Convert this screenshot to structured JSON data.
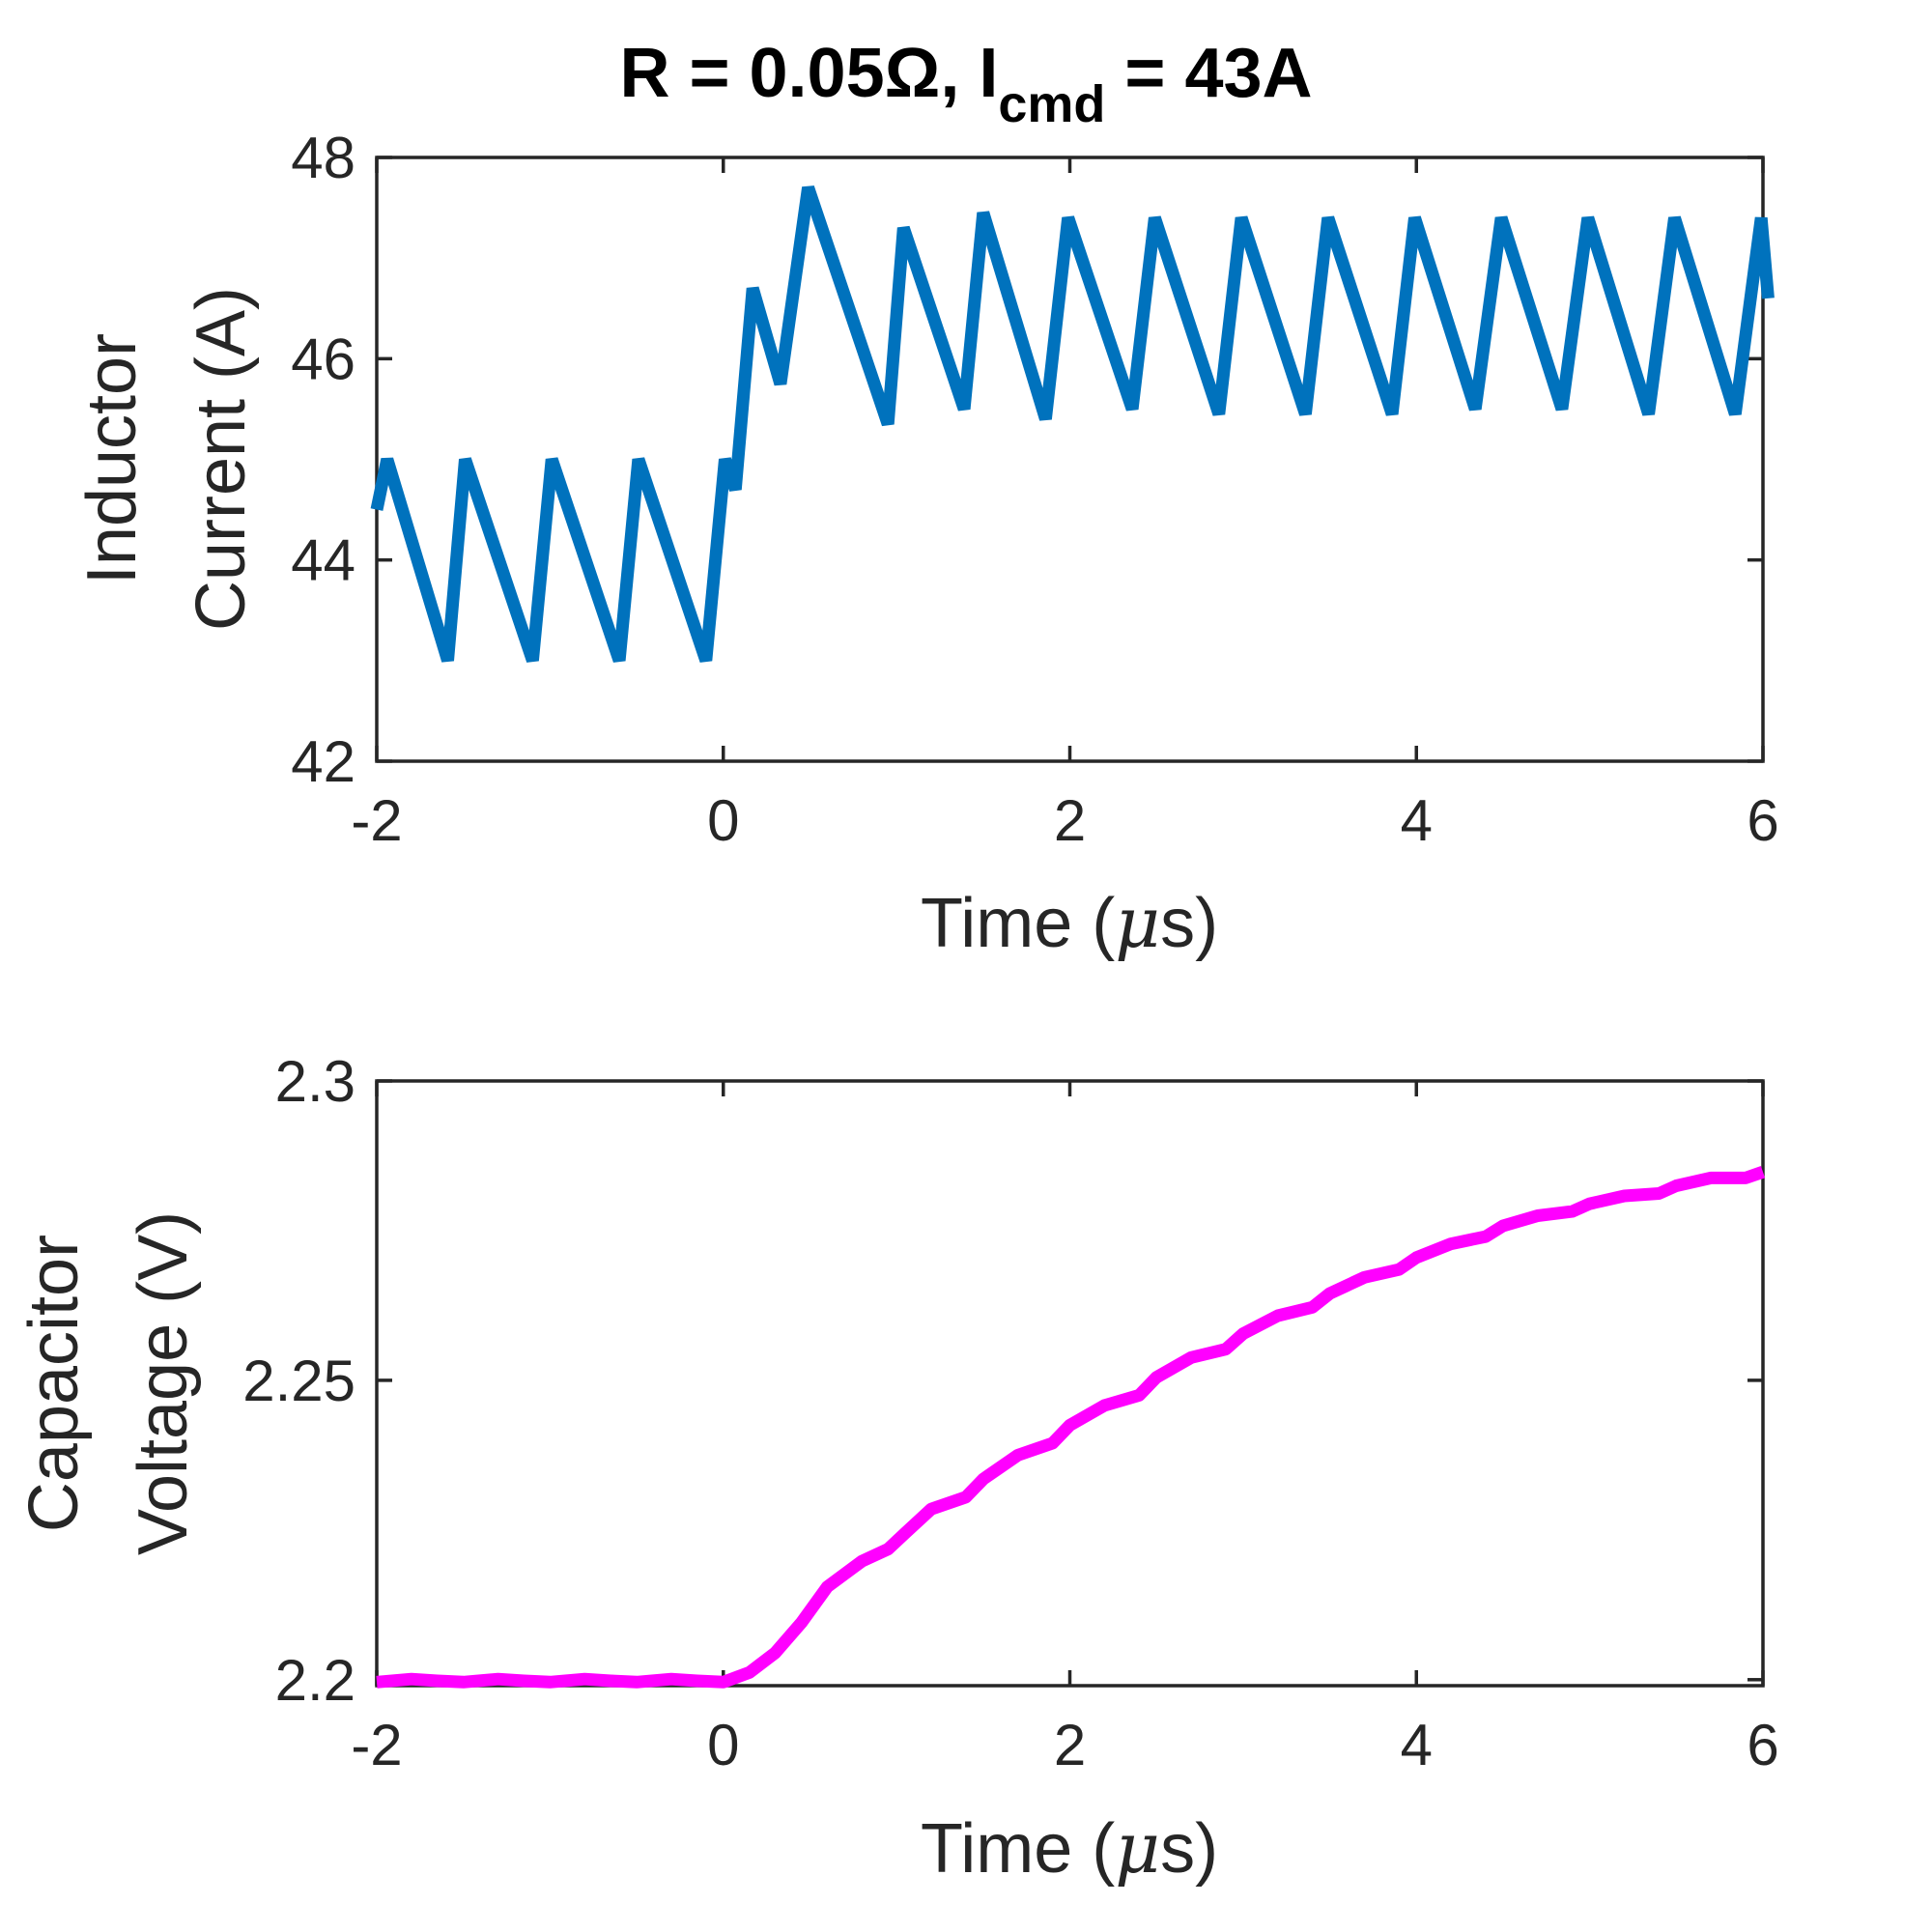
{
  "chart_data": [
    {
      "type": "line",
      "title": {
        "main": "R = 0.05Ω, I",
        "sub": "cmd",
        "tail": " = 43A"
      },
      "xlabel": {
        "pre": "Time (",
        "mu": "μ",
        "post": "s)"
      },
      "ylabel": [
        "Inductor",
        "Current (A)"
      ],
      "xlim": [
        -2,
        6
      ],
      "ylim": [
        42,
        48
      ],
      "xticks": [
        -2,
        0,
        2,
        4,
        6
      ],
      "xtick_labels": [
        "-2",
        "0",
        "2",
        "4",
        "6"
      ],
      "yticks": [
        42,
        44,
        46,
        48
      ],
      "ytick_labels": [
        "42",
        "44",
        "46",
        "48"
      ],
      "grid": false,
      "series": [
        {
          "name": "Inductor Current",
          "color": "#0072BD",
          "x": [
            -2.0,
            -1.94,
            -1.59,
            -1.49,
            -1.1,
            -0.99,
            -0.6,
            -0.49,
            -0.1,
            0.01,
            0.07,
            0.17,
            0.33,
            0.49,
            0.95,
            1.04,
            1.39,
            1.5,
            1.86,
            1.99,
            2.36,
            2.49,
            2.86,
            2.99,
            3.36,
            3.49,
            3.86,
            3.99,
            4.34,
            4.49,
            4.84,
            4.99,
            5.34,
            5.49,
            5.84,
            5.99,
            6.03
          ],
          "y": [
            44.5,
            45.0,
            43.0,
            45.0,
            43.0,
            45.0,
            43.0,
            45.0,
            43.0,
            45.0,
            44.7,
            46.7,
            45.75,
            47.7,
            45.35,
            47.3,
            45.5,
            47.45,
            45.4,
            47.4,
            45.5,
            47.4,
            45.45,
            47.4,
            45.45,
            47.4,
            45.45,
            47.4,
            45.5,
            47.4,
            45.5,
            47.4,
            45.45,
            47.4,
            45.45,
            47.4,
            46.6
          ]
        }
      ]
    },
    {
      "type": "line",
      "title": "",
      "xlabel": {
        "pre": "Time (",
        "mu": "μ",
        "post": "s)"
      },
      "ylabel": [
        "Capacitor",
        "Voltage (V)"
      ],
      "xlim": [
        -2,
        6
      ],
      "ylim": [
        2.199,
        2.3
      ],
      "xticks": [
        -2,
        0,
        2,
        4,
        6
      ],
      "xtick_labels": [
        "-2",
        "0",
        "2",
        "4",
        "6"
      ],
      "yticks": [
        2.2,
        2.25,
        2.3
      ],
      "ytick_labels": [
        "2.2",
        "2.25",
        "2.3"
      ],
      "grid": false,
      "series": [
        {
          "name": "Capacitor Voltage",
          "color": "#FF00FF",
          "x": [
            -2.0,
            -1.8,
            -1.65,
            -1.5,
            -1.3,
            -1.15,
            -1.0,
            -0.8,
            -0.65,
            -0.5,
            -0.3,
            -0.15,
            0.0,
            0.15,
            0.3,
            0.45,
            0.6,
            0.8,
            0.95,
            1.05,
            1.2,
            1.4,
            1.5,
            1.7,
            1.9,
            2.0,
            2.2,
            2.4,
            2.5,
            2.7,
            2.9,
            3.0,
            3.2,
            3.4,
            3.5,
            3.7,
            3.9,
            4.0,
            4.2,
            4.4,
            4.5,
            4.7,
            4.9,
            5.0,
            5.2,
            5.4,
            5.5,
            5.7,
            5.9,
            6.0
          ],
          "y": [
            2.1996,
            2.2001,
            2.1998,
            2.1996,
            2.2001,
            2.1998,
            2.1996,
            2.2001,
            2.1998,
            2.1996,
            2.2001,
            2.1998,
            2.1996,
            2.2012,
            2.2045,
            2.2095,
            2.2155,
            2.2198,
            2.2218,
            2.2245,
            2.2285,
            2.2305,
            2.2335,
            2.2375,
            2.2395,
            2.2425,
            2.2458,
            2.2475,
            2.2505,
            2.2538,
            2.2552,
            2.2578,
            2.2608,
            2.2622,
            2.2645,
            2.2672,
            2.2685,
            2.2705,
            2.2728,
            2.274,
            2.2758,
            2.2775,
            2.2782,
            2.2795,
            2.2808,
            2.2812,
            2.2825,
            2.2838,
            2.2838,
            2.2848
          ]
        }
      ]
    }
  ]
}
